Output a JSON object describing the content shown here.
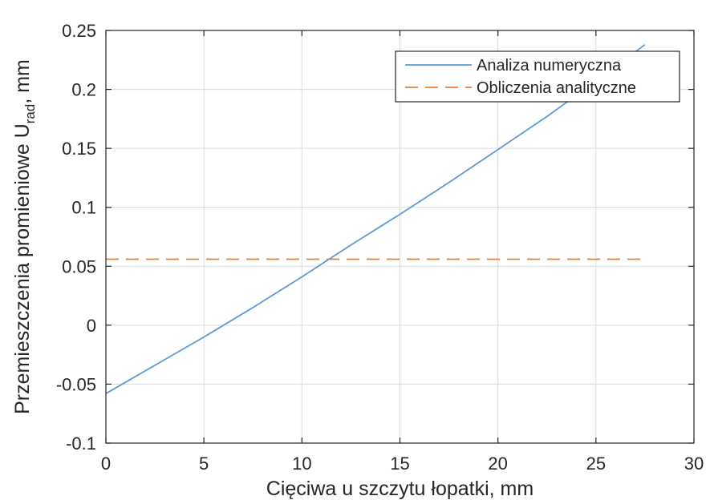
{
  "chart_data": {
    "type": "line",
    "title": "",
    "xlabel": "Cięciwa u szczytu łopatki, mm",
    "ylabel": {
      "main": "Przemieszczenia  promieniowe  U",
      "subscript": "rad",
      "suffix": ",  mm"
    },
    "xlim": [
      0,
      30
    ],
    "ylim": [
      -0.1,
      0.25
    ],
    "xticks": [
      0,
      5,
      10,
      15,
      20,
      25,
      30
    ],
    "xtick_labels": [
      "0",
      "5",
      "10",
      "15",
      "20",
      "25",
      "30"
    ],
    "yticks": [
      -0.1,
      -0.05,
      0,
      0.05,
      0.1,
      0.15,
      0.2,
      0.25
    ],
    "ytick_labels": [
      "-0.1",
      "-0.05",
      "0",
      "0.05",
      "0.1",
      "0.15",
      "0.2",
      "0.25"
    ],
    "grid": true,
    "legend_position": "top-right",
    "series": [
      {
        "name": "Analiza numeryczna",
        "color": "#5b9bd5",
        "style": "solid",
        "x": [
          0,
          2.5,
          5,
          7.5,
          10,
          12.5,
          15,
          17.5,
          20,
          22.5,
          25,
          27.5
        ],
        "y": [
          -0.058,
          -0.034,
          -0.01,
          0.015,
          0.041,
          0.068,
          0.094,
          0.121,
          0.149,
          0.177,
          0.207,
          0.238
        ]
      },
      {
        "name": "Obliczenia analityczne",
        "color": "#ed7d31",
        "style": "dashed",
        "x": [
          0,
          27.5
        ],
        "y": [
          0.056,
          0.056
        ]
      }
    ]
  }
}
